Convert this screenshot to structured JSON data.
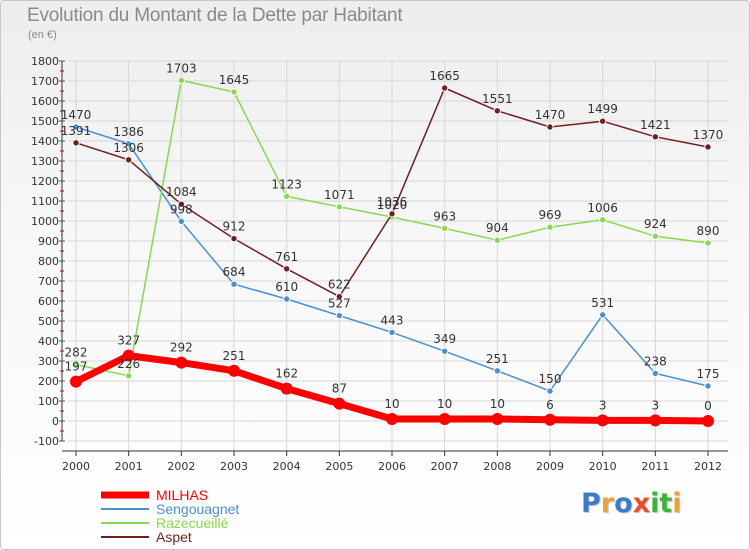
{
  "title": "Evolution du Montant de la Dette par Habitant",
  "subtitle": "(en €)",
  "logo_text": "Proxiti",
  "logo_colors": [
    "#3c7bc8",
    "#e8a43c",
    "#3c7bc8",
    "#e8502c",
    "#3cb43c",
    "#3cb43c",
    "#e8a43c"
  ],
  "chart_data": {
    "type": "line",
    "x": [
      2000,
      2001,
      2002,
      2003,
      2004,
      2005,
      2006,
      2007,
      2008,
      2009,
      2010,
      2011,
      2012
    ],
    "ylim": [
      -100,
      1800
    ],
    "yticks": [
      -100,
      0,
      100,
      200,
      300,
      400,
      500,
      600,
      700,
      800,
      900,
      1000,
      1100,
      1200,
      1300,
      1400,
      1500,
      1600,
      1700,
      1800
    ],
    "grid": true,
    "legend_position": "bottom-left",
    "series": [
      {
        "name": "Sengouagnet",
        "color": "#4a8fd0",
        "values": [
          1470,
          1386,
          998,
          684,
          610,
          527,
          443,
          349,
          251,
          150,
          531,
          238,
          175
        ]
      },
      {
        "name": "Razecueillé",
        "color": "#88d850",
        "values": [
          282,
          226,
          1703,
          1645,
          1123,
          1071,
          1020,
          963,
          904,
          969,
          1006,
          924,
          890
        ]
      },
      {
        "name": "Aspet",
        "color": "#6e1f1f",
        "values": [
          1391,
          1306,
          1084,
          912,
          761,
          622,
          1036,
          1665,
          1551,
          1470,
          1499,
          1421,
          1370
        ]
      },
      {
        "name": "MILHAS",
        "color": "#ff0000",
        "values": [
          197,
          327,
          292,
          251,
          162,
          87,
          10,
          10,
          10,
          6,
          3,
          3,
          0
        ]
      }
    ],
    "legend_order": [
      "MILHAS",
      "Sengouagnet",
      "Razecueillé",
      "Aspet"
    ]
  }
}
